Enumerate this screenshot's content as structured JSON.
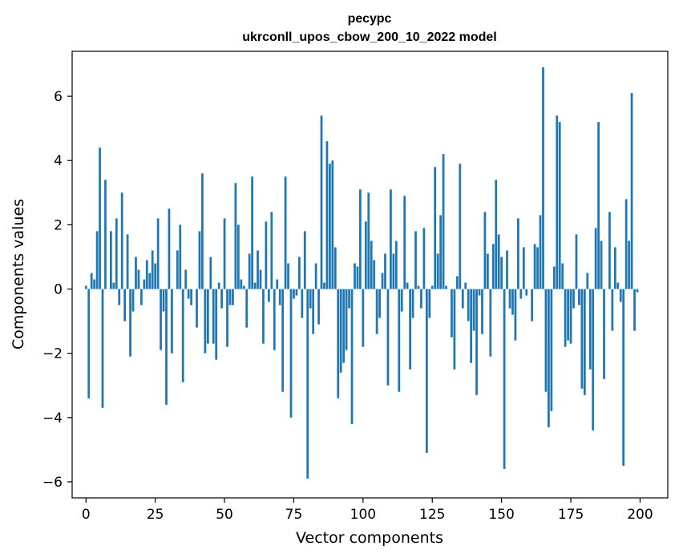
{
  "chart_data": {
    "type": "bar",
    "title_line1": "ресурс",
    "title_line2": "ukrconll_upos_cbow_200_10_2022 model",
    "xlabel": "Vector components",
    "ylabel": "Components values",
    "xlim": [
      -5,
      210
    ],
    "ylim": [
      -6.5,
      7.4
    ],
    "xticks": [
      0,
      25,
      50,
      75,
      100,
      125,
      150,
      175,
      200
    ],
    "xtick_labels": [
      "0",
      "25",
      "50",
      "75",
      "100",
      "125",
      "150",
      "175",
      "200"
    ],
    "yticks": [
      -6,
      -4,
      -2,
      0,
      2,
      4,
      6
    ],
    "ytick_labels": [
      "−6",
      "−4",
      "−2",
      "0",
      "2",
      "4",
      "6"
    ],
    "bar_color": "#1f77b4",
    "grid": false,
    "x": [
      0,
      1,
      2,
      3,
      4,
      5,
      6,
      7,
      8,
      9,
      10,
      11,
      12,
      13,
      14,
      15,
      16,
      17,
      18,
      19,
      20,
      21,
      22,
      23,
      24,
      25,
      26,
      27,
      28,
      29,
      30,
      31,
      32,
      33,
      34,
      35,
      36,
      37,
      38,
      39,
      40,
      41,
      42,
      43,
      44,
      45,
      46,
      47,
      48,
      49,
      50,
      51,
      52,
      53,
      54,
      55,
      56,
      57,
      58,
      59,
      60,
      61,
      62,
      63,
      64,
      65,
      66,
      67,
      68,
      69,
      70,
      71,
      72,
      73,
      74,
      75,
      76,
      77,
      78,
      79,
      80,
      81,
      82,
      83,
      84,
      85,
      86,
      87,
      88,
      89,
      90,
      91,
      92,
      93,
      94,
      95,
      96,
      97,
      98,
      99,
      100,
      101,
      102,
      103,
      104,
      105,
      106,
      107,
      108,
      109,
      110,
      111,
      112,
      113,
      114,
      115,
      116,
      117,
      118,
      119,
      120,
      121,
      122,
      123,
      124,
      125,
      126,
      127,
      128,
      129,
      130,
      131,
      132,
      133,
      134,
      135,
      136,
      137,
      138,
      139,
      140,
      141,
      142,
      143,
      144,
      145,
      146,
      147,
      148,
      149,
      150,
      151,
      152,
      153,
      154,
      155,
      156,
      157,
      158,
      159,
      160,
      161,
      162,
      163,
      164,
      165,
      166,
      167,
      168,
      169,
      170,
      171,
      172,
      173,
      174,
      175,
      176,
      177,
      178,
      179,
      180,
      181,
      182,
      183,
      184,
      185,
      186,
      187,
      188,
      189,
      190,
      191,
      192,
      193,
      194,
      195,
      196,
      197,
      198,
      199
    ],
    "values": [
      0.1,
      -3.4,
      0.5,
      0.3,
      1.8,
      4.4,
      -3.7,
      3.4,
      0.0,
      1.8,
      0.2,
      2.2,
      -0.5,
      3.0,
      -1.0,
      1.7,
      -2.1,
      -0.7,
      1.0,
      0.6,
      -0.5,
      0.3,
      0.9,
      0.5,
      1.2,
      0.8,
      2.2,
      -1.9,
      -0.7,
      -3.6,
      2.5,
      -2.0,
      0.0,
      1.2,
      2.0,
      -2.9,
      0.6,
      -0.3,
      -0.5,
      0.0,
      -1.2,
      1.8,
      3.6,
      -2.0,
      -1.7,
      1.0,
      -1.7,
      -2.2,
      0.2,
      -0.6,
      2.2,
      -1.8,
      -0.5,
      -0.5,
      3.3,
      2.0,
      0.3,
      0.1,
      -1.2,
      1.1,
      3.5,
      0.2,
      1.2,
      0.6,
      -1.7,
      2.1,
      -0.4,
      2.4,
      -1.9,
      0.3,
      -0.5,
      -3.2,
      3.5,
      0.8,
      -4.0,
      -0.3,
      -0.2,
      1.0,
      -0.9,
      1.8,
      -5.9,
      -0.6,
      -1.4,
      0.8,
      -1.1,
      5.4,
      0.2,
      4.6,
      3.9,
      4.0,
      1.3,
      -3.4,
      -2.6,
      -2.3,
      -1.9,
      -0.6,
      -4.2,
      0.8,
      0.7,
      3.1,
      -1.8,
      2.1,
      3.0,
      1.5,
      0.9,
      -1.4,
      -0.9,
      0.5,
      1.1,
      -3.0,
      3.1,
      1.1,
      1.5,
      -3.2,
      -0.7,
      2.9,
      0.2,
      -2.5,
      -0.9,
      1.8,
      0.1,
      -0.6,
      1.9,
      -5.1,
      -0.9,
      0.1,
      3.8,
      1.1,
      2.3,
      4.2,
      0.1,
      0.0,
      -1.5,
      -2.5,
      0.4,
      3.9,
      -0.6,
      0.2,
      -1.0,
      -2.3,
      -1.3,
      -3.3,
      -0.2,
      -1.4,
      2.4,
      1.1,
      -2.1,
      1.4,
      3.4,
      1.7,
      1.0,
      -5.6,
      1.2,
      -0.6,
      -0.8,
      -1.6,
      2.2,
      -0.3,
      1.3,
      -0.2,
      0.0,
      -1.0,
      1.4,
      1.3,
      2.3,
      6.9,
      -3.2,
      -4.3,
      -3.8,
      0.7,
      5.4,
      5.2,
      0.8,
      -1.8,
      -1.6,
      -1.7,
      -0.6,
      1.7,
      -0.5,
      -3.1,
      -3.3,
      0.5,
      -2.5,
      -4.4,
      1.9,
      5.2,
      1.5,
      -2.8,
      0.0,
      2.4,
      -1.3,
      1.3,
      0.2,
      -0.4,
      -5.5,
      2.8,
      1.5,
      6.1,
      -1.3,
      -0.1
    ]
  }
}
